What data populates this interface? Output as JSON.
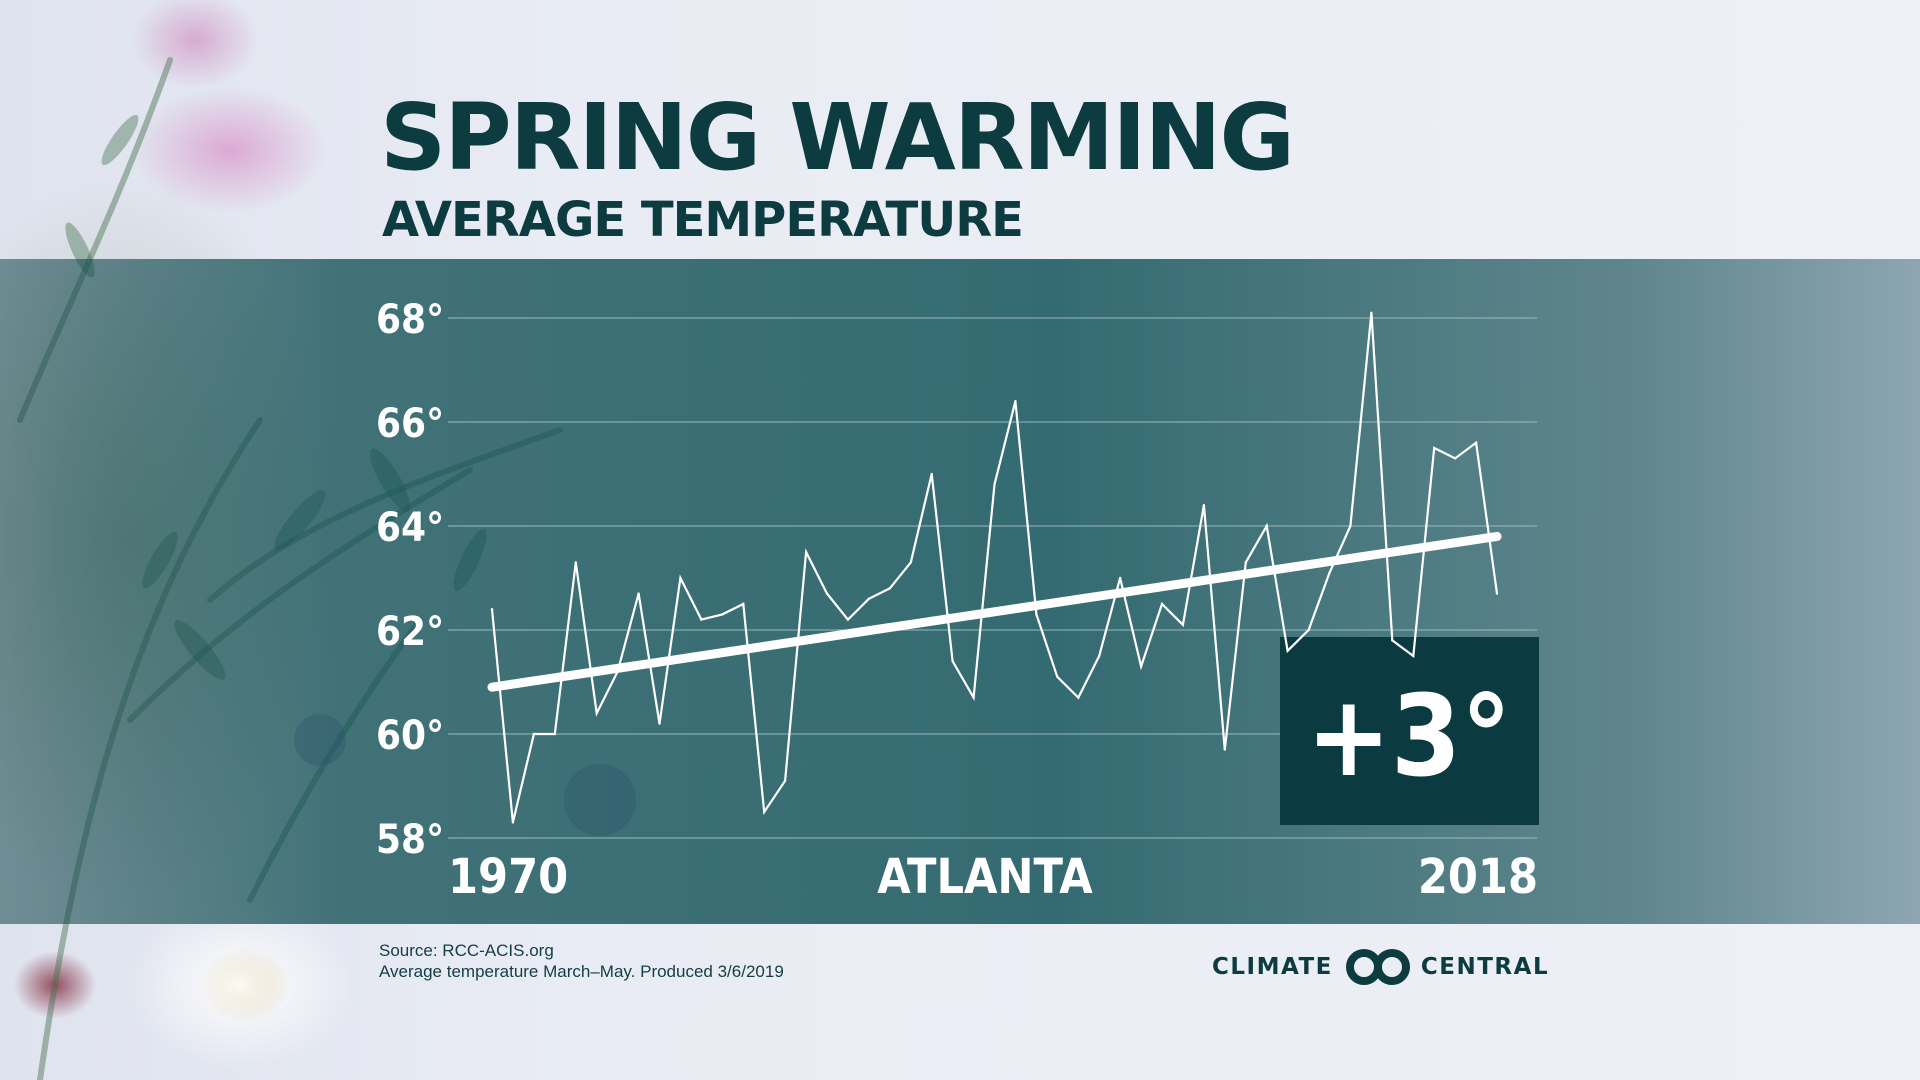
{
  "header": {
    "title": "SPRING WARMING",
    "subtitle": "AVERAGE TEMPERATURE"
  },
  "chart_data": {
    "type": "line",
    "location_label": "ATLANTA",
    "x_start_label": "1970",
    "x_end_label": "2018",
    "ylim": [
      58,
      68
    ],
    "yticks": [
      58,
      60,
      62,
      64,
      66,
      68
    ],
    "ytick_suffix": "°",
    "grid": true,
    "x": [
      1970,
      1971,
      1972,
      1973,
      1974,
      1975,
      1976,
      1977,
      1978,
      1979,
      1980,
      1981,
      1982,
      1983,
      1984,
      1985,
      1986,
      1987,
      1988,
      1989,
      1990,
      1991,
      1992,
      1993,
      1994,
      1995,
      1996,
      1997,
      1998,
      1999,
      2000,
      2001,
      2002,
      2003,
      2004,
      2005,
      2006,
      2007,
      2008,
      2009,
      2010,
      2011,
      2012,
      2013,
      2014,
      2015,
      2016,
      2017,
      2018
    ],
    "series": [
      {
        "values": [
          62.4,
          58.3,
          60.0,
          60.0,
          63.3,
          60.4,
          61.2,
          62.7,
          60.2,
          63.0,
          62.2,
          62.3,
          62.5,
          58.5,
          59.1,
          63.5,
          62.7,
          62.2,
          62.6,
          62.8,
          63.3,
          65.0,
          61.4,
          60.7,
          64.8,
          66.4,
          62.3,
          61.1,
          60.7,
          61.5,
          63.0,
          61.3,
          62.5,
          62.1,
          64.4,
          59.7,
          63.3,
          64.0,
          61.6,
          62.0,
          63.1,
          64.0,
          68.1,
          61.8,
          61.5,
          65.5,
          65.3,
          65.6,
          62.7
        ],
        "color": "#ffffff"
      },
      {
        "type": "trend",
        "x": [
          1970,
          2018
        ],
        "values": [
          60.9,
          63.8
        ],
        "color": "#ffffff"
      }
    ],
    "annotation": "+3°"
  },
  "footer": {
    "source_line": "Source: RCC-ACIS.org",
    "note_line": "Average temperature March–May. Produced 3/6/2019",
    "logo_left": "CLIMATE",
    "logo_right": "CENTRAL"
  },
  "colors": {
    "title": "#0c3b40",
    "band": "#1a5a60",
    "annotation_box": "#0b3b40",
    "line": "#ffffff",
    "grid": "#9fc0c2"
  }
}
